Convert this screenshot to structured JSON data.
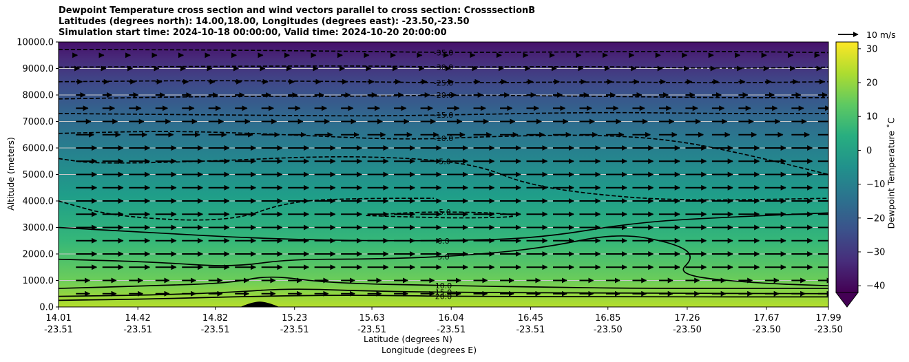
{
  "chart_data": {
    "type": "contour",
    "title_lines": [
      "Dewpoint Temperature cross section and wind vectors parallel to cross section: CrosssectionB",
      "Latitudes (degrees north): 14.00,18.00, Longitudes (degrees east): -23.50,-23.50",
      "Simulation start time: 2024-10-18 00:00:00, Valid time: 2024-10-20 20:00:00"
    ],
    "xlabel_lat": "Latitude (degrees N)",
    "xlabel_lon": "Longitude (degrees E)",
    "ylabel": "Altitude (meters)",
    "x_ticks_lat": [
      "14.01",
      "14.42",
      "14.82",
      "15.23",
      "15.63",
      "16.04",
      "16.45",
      "16.85",
      "17.26",
      "17.67",
      "17.99"
    ],
    "x_ticks_lon": [
      "-23.51",
      "-23.51",
      "-23.51",
      "-23.51",
      "-23.51",
      "-23.51",
      "-23.51",
      "-23.50",
      "-23.50",
      "-23.50",
      "-23.50"
    ],
    "x_tick_values": [
      14.01,
      14.42,
      14.82,
      15.23,
      15.63,
      16.04,
      16.45,
      16.85,
      17.26,
      17.67,
      17.99
    ],
    "xlim": [
      14.01,
      17.99
    ],
    "y_ticks": [
      "0.0",
      "1000.0",
      "2000.0",
      "3000.0",
      "4000.0",
      "5000.0",
      "6000.0",
      "7000.0",
      "8000.0",
      "9000.0",
      "10000.0"
    ],
    "ylim": [
      0,
      10000
    ],
    "grid": "horizontal",
    "colorbar": {
      "label": "Dewpoint Temperature ˚C",
      "ticks": [
        "30",
        "20",
        "10",
        "0",
        "−10",
        "−20",
        "−30",
        "−40"
      ],
      "tick_values": [
        30,
        20,
        10,
        0,
        -10,
        -20,
        -30,
        -40
      ],
      "range": [
        -42,
        32
      ],
      "extend": "min"
    },
    "quiver_key": "10 m/s",
    "contour_lines": [
      {
        "level": "-35.0",
        "style": "dashed",
        "points": [
          [
            14.01,
            9720
          ],
          [
            14.8,
            9700
          ],
          [
            15.5,
            9650
          ],
          [
            16.04,
            9600
          ],
          [
            16.8,
            9630
          ],
          [
            17.4,
            9650
          ],
          [
            17.99,
            9600
          ]
        ]
      },
      {
        "level": "-30.0",
        "style": "dashed",
        "points": [
          [
            14.01,
            9050
          ],
          [
            14.8,
            9080
          ],
          [
            15.6,
            9100
          ],
          [
            16.04,
            9050
          ],
          [
            16.8,
            9080
          ],
          [
            17.4,
            9000
          ],
          [
            17.99,
            9050
          ]
        ]
      },
      {
        "level": "-25.0",
        "style": "dashed",
        "points": [
          [
            14.01,
            8500
          ],
          [
            14.8,
            8550
          ],
          [
            15.6,
            8500
          ],
          [
            16.04,
            8450
          ],
          [
            16.8,
            8500
          ],
          [
            17.4,
            8450
          ],
          [
            17.99,
            8500
          ]
        ]
      },
      {
        "level": "-20.0",
        "style": "dashed",
        "points": [
          [
            14.01,
            7850
          ],
          [
            14.8,
            7950
          ],
          [
            15.6,
            7950
          ],
          [
            16.04,
            8000
          ],
          [
            16.8,
            7950
          ],
          [
            17.4,
            7900
          ],
          [
            17.99,
            7900
          ]
        ]
      },
      {
        "level": "-15.0",
        "style": "dashed",
        "points": [
          [
            14.01,
            7300
          ],
          [
            14.8,
            7250
          ],
          [
            15.6,
            7200
          ],
          [
            16.04,
            7250
          ],
          [
            16.8,
            7350
          ],
          [
            17.4,
            7300
          ],
          [
            17.99,
            7300
          ]
        ]
      },
      {
        "level": "-10.0",
        "style": "dashed",
        "points": [
          [
            14.01,
            6550
          ],
          [
            14.6,
            6650
          ],
          [
            15.2,
            6500
          ],
          [
            15.8,
            6300
          ],
          [
            16.3,
            6450
          ],
          [
            16.8,
            6500
          ],
          [
            17.2,
            6300
          ],
          [
            17.6,
            5700
          ],
          [
            17.99,
            5000
          ]
        ]
      },
      {
        "level": "-5.0",
        "style": "dashed",
        "points": [
          [
            14.01,
            5600
          ],
          [
            14.2,
            5400
          ],
          [
            14.8,
            5500
          ],
          [
            15.4,
            5700
          ],
          [
            15.9,
            5600
          ],
          [
            16.2,
            5300
          ],
          [
            16.4,
            4700
          ],
          [
            16.7,
            4300
          ],
          [
            17.2,
            4000
          ],
          [
            17.99,
            4100
          ]
        ]
      },
      {
        "level": "-5.0",
        "style": "dashed",
        "points": [
          [
            14.01,
            4000
          ],
          [
            14.3,
            3400
          ],
          [
            14.9,
            3200
          ],
          [
            15.2,
            4000
          ],
          [
            15.6,
            4100
          ],
          [
            15.95,
            4100
          ]
        ]
      },
      {
        "level": "-5.0",
        "style": "dashed",
        "points": [
          [
            15.6,
            3450
          ],
          [
            15.9,
            3600
          ],
          [
            16.3,
            3550
          ],
          [
            16.4,
            3400
          ],
          [
            16.1,
            3350
          ],
          [
            15.8,
            3400
          ],
          [
            15.6,
            3450
          ]
        ]
      },
      {
        "level": "0.0",
        "style": "solid",
        "points": [
          [
            14.01,
            3000
          ],
          [
            14.5,
            2800
          ],
          [
            15.0,
            2600
          ],
          [
            15.5,
            2500
          ],
          [
            16.04,
            2500
          ],
          [
            16.5,
            2600
          ],
          [
            17.0,
            3200
          ],
          [
            17.5,
            3400
          ],
          [
            17.99,
            3550
          ]
        ]
      },
      {
        "level": "5.0",
        "style": "solid",
        "points": [
          [
            14.01,
            1800
          ],
          [
            14.5,
            1700
          ],
          [
            14.9,
            1500
          ],
          [
            15.2,
            1800
          ],
          [
            15.6,
            1800
          ],
          [
            16.04,
            1900
          ],
          [
            16.5,
            2200
          ],
          [
            16.9,
            2800
          ],
          [
            17.2,
            2400
          ],
          [
            17.3,
            1900
          ],
          [
            17.2,
            1200
          ],
          [
            17.6,
            900
          ],
          [
            17.99,
            800
          ]
        ]
      },
      {
        "level": "10.0",
        "style": "solid",
        "points": [
          [
            14.01,
            700
          ],
          [
            14.5,
            800
          ],
          [
            14.9,
            900
          ],
          [
            15.1,
            1200
          ],
          [
            15.4,
            900
          ],
          [
            16.04,
            800
          ],
          [
            16.5,
            750
          ],
          [
            17.0,
            700
          ],
          [
            17.99,
            700
          ]
        ]
      },
      {
        "level": "15.0",
        "style": "solid",
        "points": [
          [
            14.01,
            400
          ],
          [
            14.5,
            450
          ],
          [
            14.9,
            550
          ],
          [
            15.2,
            700
          ],
          [
            15.6,
            600
          ],
          [
            16.04,
            550
          ],
          [
            17.0,
            520
          ],
          [
            17.99,
            500
          ]
        ]
      },
      {
        "level": "20.0",
        "style": "solid",
        "points": [
          [
            14.01,
            250
          ],
          [
            14.5,
            300
          ],
          [
            15.0,
            400
          ],
          [
            15.5,
            450
          ],
          [
            16.04,
            400
          ],
          [
            17.0,
            380
          ],
          [
            17.99,
            380
          ]
        ]
      }
    ],
    "terrain": {
      "peak_lat": 15.05,
      "peak_alt": 200
    }
  }
}
